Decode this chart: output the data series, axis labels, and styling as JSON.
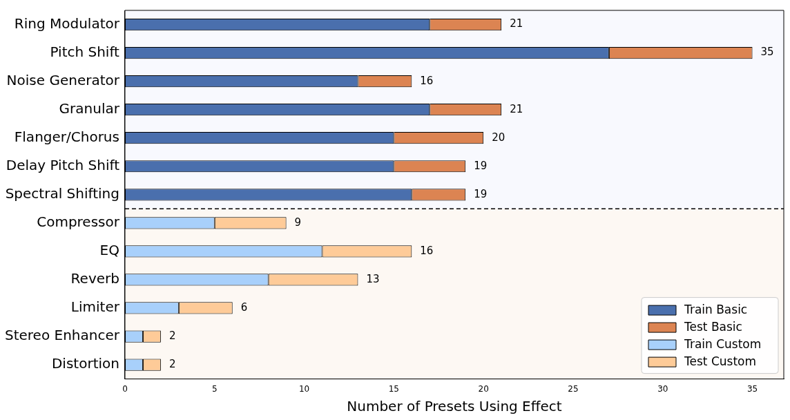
{
  "chart_data": {
    "type": "bar",
    "orientation": "horizontal",
    "stacked": true,
    "xlabel": "Number of Presets Using Effect",
    "categories": [
      "Ring Modulator",
      "Pitch Shift",
      "Noise Generator",
      "Granular",
      "Flanger/Chorus",
      "Delay Pitch Shift",
      "Spectral Shifting",
      "Compressor",
      "EQ",
      "Reverb",
      "Limiter",
      "Stereo Enhancer",
      "Distortion"
    ],
    "series": [
      {
        "name": "Train Basic",
        "color": "#4a6fad",
        "values": [
          17,
          27,
          13,
          17,
          15,
          15,
          16,
          null,
          null,
          null,
          null,
          null,
          null
        ]
      },
      {
        "name": "Test Basic",
        "color": "#dc8452",
        "values": [
          4,
          8,
          3,
          4,
          5,
          4,
          3,
          null,
          null,
          null,
          null,
          null,
          null
        ]
      },
      {
        "name": "Train Custom",
        "color": "#a8d0fb",
        "values": [
          null,
          null,
          null,
          null,
          null,
          null,
          null,
          5,
          11,
          8,
          3,
          1,
          1
        ]
      },
      {
        "name": "Test Custom",
        "color": "#fecb98",
        "values": [
          null,
          null,
          null,
          null,
          null,
          null,
          null,
          4,
          5,
          5,
          3,
          1,
          1
        ]
      }
    ],
    "totals": [
      "21",
      "35",
      "16",
      "21",
      "20",
      "19",
      "19",
      "9",
      "16",
      "13",
      "6",
      "2",
      "2"
    ],
    "xlim": [
      0,
      36.75
    ],
    "xticks": [
      0,
      5,
      10,
      15,
      20,
      25,
      30,
      35
    ],
    "bands": [
      {
        "axis": "y",
        "from": "Ring Modulator",
        "to": "Spectral Shifting",
        "color": "#f8f9fe"
      },
      {
        "axis": "y",
        "from": "Compressor",
        "to": "Distortion",
        "color": "#fdf8f3"
      }
    ],
    "legend": "bottom right",
    "grid": false
  }
}
